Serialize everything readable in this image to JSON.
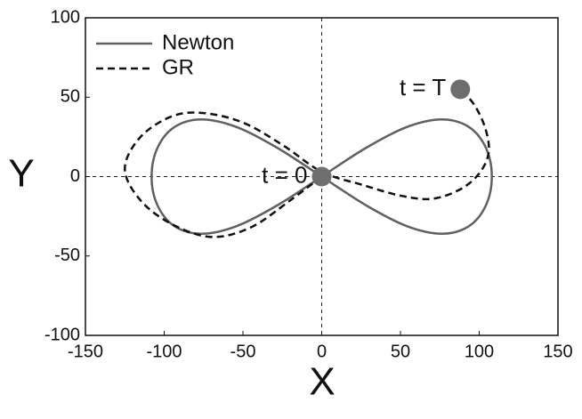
{
  "chart_data": {
    "type": "line",
    "xlabel": "X",
    "ylabel": "Y",
    "xlim": [
      -150,
      150
    ],
    "ylim": [
      -100,
      100
    ],
    "xticks": [
      -150,
      -100,
      -50,
      0,
      50,
      100,
      150
    ],
    "yticks": [
      -100,
      -50,
      0,
      50,
      100
    ],
    "zero_lines": true,
    "legend": "upper left",
    "series": [
      {
        "name": "Newton",
        "color": "#606060",
        "dash": false,
        "x": [
          0,
          28,
          54,
          76.4,
          93.5,
          104.3,
          108,
          104.3,
          93.5,
          76.4,
          54,
          28,
          0,
          -28,
          -54,
          -76.4,
          -93.5,
          -104.3,
          -108,
          -104.3,
          -93.5,
          -76.4,
          -54,
          -28,
          0
        ],
        "values": [
          0,
          18,
          31.2,
          36,
          31.2,
          18,
          0,
          -18,
          -31.2,
          -36,
          -31.2,
          -18,
          0,
          18,
          31.2,
          36,
          31.2,
          18,
          0,
          -18,
          -31.2,
          -36,
          -31.2,
          -18,
          0
        ]
      },
      {
        "name": "GR",
        "color": "#111111",
        "dash": true,
        "x": [
          0,
          -20,
          -45,
          -70,
          -95,
          -115,
          -125,
          -115,
          -95,
          -75,
          -50,
          -25,
          0,
          25,
          50,
          70,
          88,
          100,
          106,
          104,
          97,
          88
        ],
        "values": [
          0,
          -15,
          -32,
          -38,
          -30,
          -15,
          5,
          25,
          38,
          40,
          34,
          20,
          3,
          -5,
          -12,
          -14,
          -8,
          2,
          15,
          30,
          45,
          55
        ]
      }
    ],
    "markers": [
      {
        "label": "t = 0",
        "x": 0,
        "y": 0,
        "color": "#6e6e6e"
      },
      {
        "label": "t = T",
        "x": 88,
        "y": 55,
        "color": "#6e6e6e"
      }
    ]
  }
}
